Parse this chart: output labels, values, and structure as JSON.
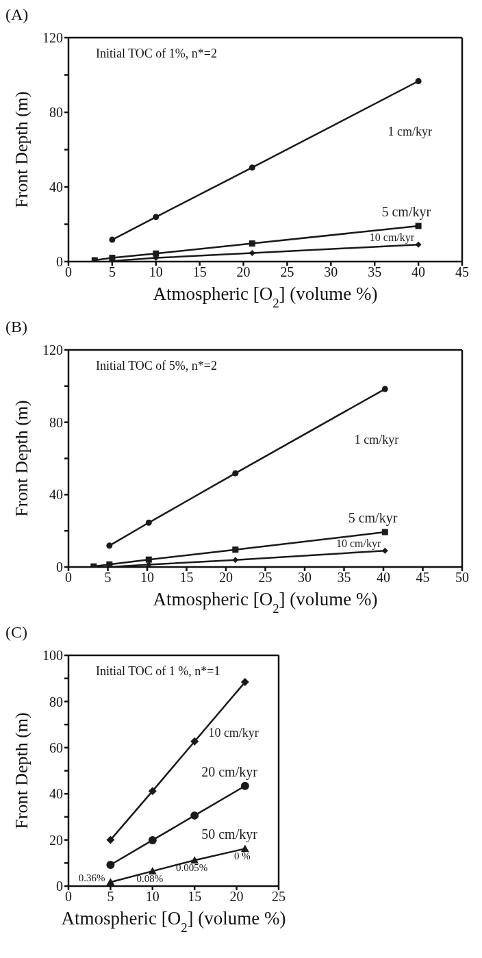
{
  "chart_data": [
    {
      "type": "line",
      "title": "(A)",
      "xlabel": "Atmospheric [O$_{2}$] (volume %)",
      "ylabel": "Front Depth (m)",
      "annotations": [
        "Initial TOC of 1%, n*=2"
      ],
      "xlim": [
        0,
        45
      ],
      "xticks": [
        0,
        5,
        10,
        15,
        20,
        25,
        30,
        35,
        40,
        45
      ],
      "ylim": [
        0,
        120
      ],
      "yticks": [
        0,
        {
          "value": 20,
          "label": null
        },
        40,
        {
          "value": 60,
          "label": null
        },
        80,
        {
          "value": 100,
          "label": null
        },
        120
      ],
      "series": [
        {
          "name": "1 cm/kyr",
          "color": "#1a1a1a",
          "marker": "circle",
          "x": [
            5,
            10,
            21,
            40
          ],
          "values": [
            11.7,
            23.9,
            50.4,
            96.7
          ]
        },
        {
          "name": "5 cm/kyr",
          "color": "#1a1a1a",
          "marker": "square",
          "x": [
            3,
            5,
            10,
            21,
            40
          ],
          "values": [
            0.7,
            2,
            4.3,
            9.7,
            19.1
          ]
        },
        {
          "name": "10 cm/kyr",
          "color": "#1a1a1a",
          "marker": "diamond",
          "x": [
            5,
            10,
            21,
            40
          ],
          "values": [
            0.3,
            2,
            4.6,
            9.1
          ]
        }
      ]
    },
    {
      "type": "line",
      "title": "(B)",
      "xlabel": "Atmospheric [O$_{2}$] (volume %)",
      "ylabel": "Front Depth (m)",
      "annotations": [
        "Initial TOC of 5%, n*=2"
      ],
      "xlim": [
        0,
        50
      ],
      "xticks": [
        0,
        5,
        10,
        15,
        20,
        25,
        30,
        35,
        40,
        45,
        50
      ],
      "ylim": [
        0,
        120
      ],
      "yticks": [
        0,
        {
          "value": 20,
          "label": null
        },
        40,
        {
          "value": 60,
          "label": null
        },
        80,
        {
          "value": 100,
          "label": null
        },
        120
      ],
      "series": [
        {
          "name": "1 cm/kyr",
          "color": "#1a1a1a",
          "marker": "circle",
          "x": [
            5.2,
            10.2,
            21.2,
            40.2
          ],
          "values": [
            11.8,
            24.5,
            51.8,
            98.4
          ]
        },
        {
          "name": "5 cm/kyr",
          "color": "#1a1a1a",
          "marker": "square",
          "x": [
            3.2,
            5.2,
            10.2,
            21.2,
            40.2
          ],
          "values": [
            0.3,
            1.4,
            4.1,
            9.6,
            19.3
          ]
        },
        {
          "name": "10 cm/kyr",
          "color": "#1a1a1a",
          "marker": "diamond",
          "x": [
            5.2,
            10.2,
            21.2,
            40.2
          ],
          "values": [
            0,
            1.3,
            3.9,
            9
          ]
        }
      ]
    },
    {
      "type": "line",
      "title": "(C)",
      "xlabel": "Atmospheric [O$_{2}$] (volume %)",
      "ylabel": "Front Depth (m)",
      "annotations": [
        "Initial TOC of 1 %, n*=1",
        {
          "text": "0.36%",
          "x": 5,
          "y": 1.7
        },
        {
          "text": "0.08%",
          "x": 10,
          "y": 6.5
        },
        {
          "text": "0.005%",
          "x": 15,
          "y": 11.2
        },
        {
          "text": "0 %",
          "x": 21,
          "y": 16.2
        }
      ],
      "xlim": [
        0,
        25
      ],
      "xticks": [
        0,
        5,
        10,
        15,
        20,
        25
      ],
      "ylim": [
        0,
        100
      ],
      "yticks": [
        0,
        {
          "value": 10,
          "label": null
        },
        20,
        {
          "value": 30,
          "label": null
        },
        40,
        {
          "value": 50,
          "label": null
        },
        60,
        {
          "value": 70,
          "label": null
        },
        80,
        {
          "value": 90,
          "label": null
        },
        100
      ],
      "series": [
        {
          "name": "10 cm/kyr",
          "color": "#1a1a1a",
          "marker": "diamond",
          "x": [
            5,
            10,
            15,
            21
          ],
          "values": [
            20,
            41.2,
            62.7,
            88.4
          ]
        },
        {
          "name": "20 cm/kyr",
          "color": "#1a1a1a",
          "marker": "circle",
          "x": [
            5,
            10,
            15,
            21
          ],
          "values": [
            9.2,
            19.9,
            30.6,
            43.4
          ]
        },
        {
          "name": "50 cm/kyr",
          "color": "#1a1a1a",
          "marker": "triangle",
          "x": [
            5,
            10,
            15,
            21
          ],
          "values": [
            1.7,
            6.5,
            11.2,
            16.2
          ]
        }
      ]
    }
  ]
}
